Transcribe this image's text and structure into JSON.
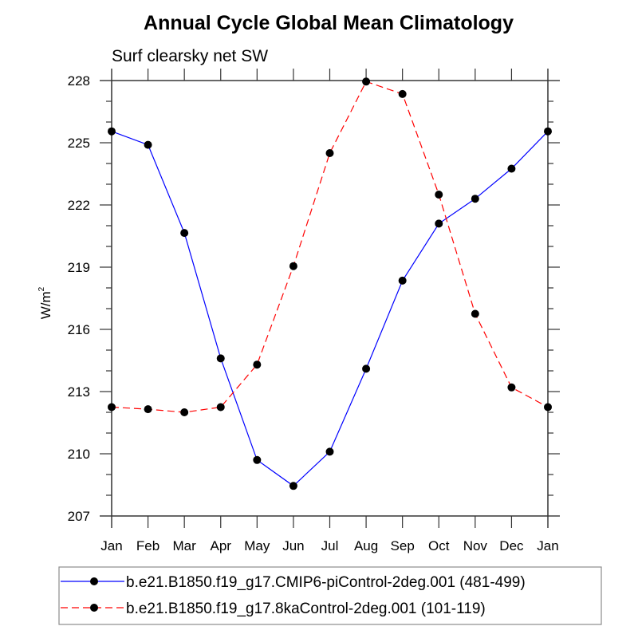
{
  "chart_data": {
    "type": "line",
    "title": "Annual Cycle Global Mean Climatology",
    "subtitle": "Surf clearsky net SW",
    "xlabel": "",
    "ylabel": "W/m",
    "ylabel_superscript": "2",
    "categories": [
      "Jan",
      "Feb",
      "Mar",
      "Apr",
      "May",
      "Jun",
      "Jul",
      "Aug",
      "Sep",
      "Oct",
      "Nov",
      "Dec",
      "Jan"
    ],
    "ylim": [
      207,
      228
    ],
    "yticks": [
      207,
      210,
      213,
      216,
      219,
      222,
      225,
      228
    ],
    "yticks_minor_step": 1,
    "grid": false,
    "legend_position": "bottom",
    "series": [
      {
        "name": "b.e21.B1850.f19_g17.CMIP6-piControl-2deg.001 (481-499)",
        "color": "#0000ff",
        "line_style": "solid",
        "marker": "filled-circle",
        "marker_color": "#000000",
        "values": [
          225.55,
          224.9,
          220.65,
          214.6,
          209.7,
          208.45,
          210.1,
          214.1,
          218.35,
          221.1,
          222.3,
          223.75,
          225.55
        ]
      },
      {
        "name": "b.e21.B1850.f19_g17.8kaControl-2deg.001 (101-119)",
        "color": "#ff0000",
        "line_style": "dashed",
        "marker": "filled-circle",
        "marker_color": "#000000",
        "values": [
          212.25,
          212.15,
          212.0,
          212.25,
          214.3,
          219.05,
          224.5,
          227.95,
          227.35,
          222.5,
          216.75,
          213.2,
          212.25
        ]
      }
    ]
  }
}
